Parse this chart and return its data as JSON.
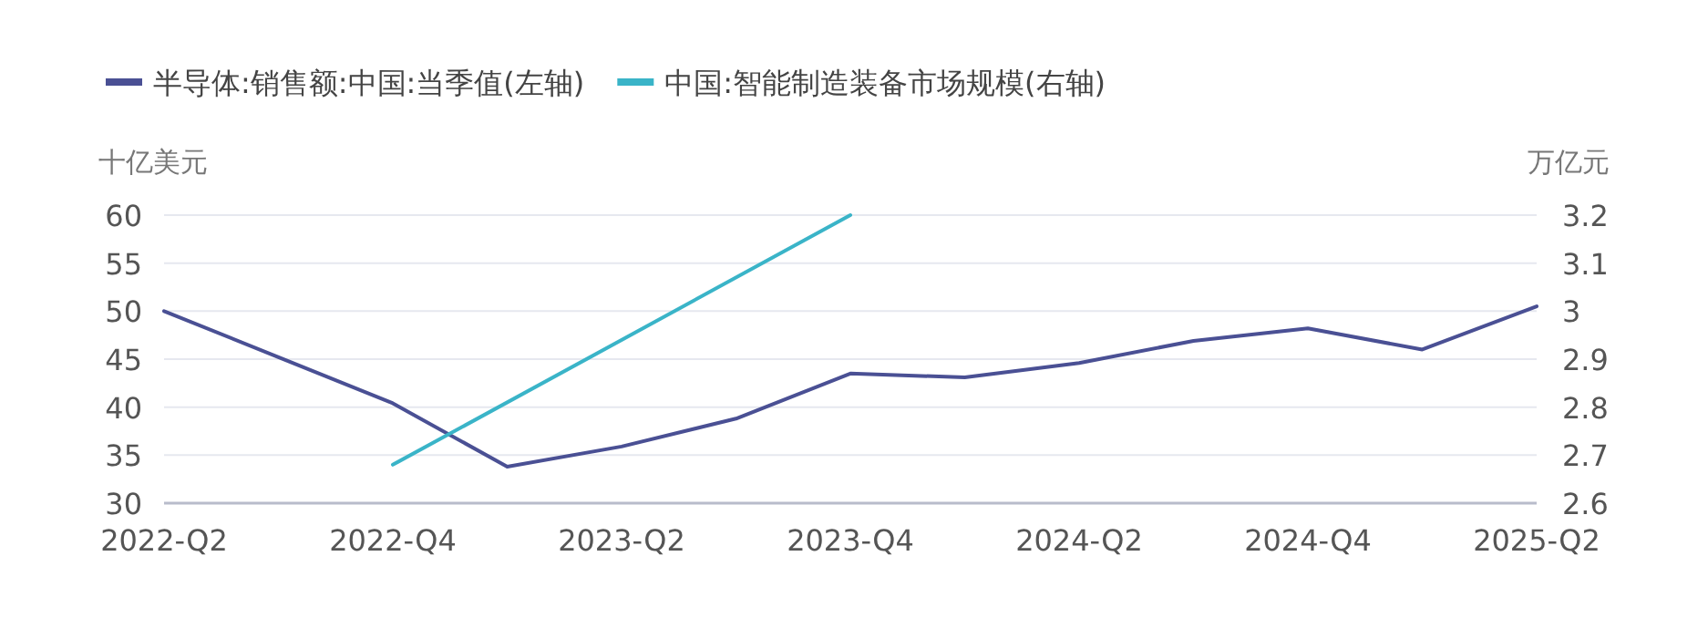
{
  "chart_data": {
    "type": "line",
    "categories": [
      "2022-Q2",
      null,
      "2022-Q4",
      null,
      "2023-Q2",
      null,
      "2023-Q4",
      null,
      "2024-Q2",
      null,
      "2024-Q4",
      null,
      "2025-Q2"
    ],
    "ylabel": "十亿美元",
    "y2label": "万亿元",
    "ylim": [
      30,
      60
    ],
    "yticks": [
      30,
      35,
      40,
      45,
      50,
      55,
      60
    ],
    "y2lim": [
      2.6,
      3.2
    ],
    "y2ticks": [
      2.6,
      2.7,
      2.8,
      2.9,
      {
        "value": 3,
        "label": "3"
      },
      3.1,
      3.2
    ],
    "grid": "y",
    "legend": "top left",
    "marker": "none",
    "line_style": "solid",
    "series": [
      {
        "name": "半导体:销售额:中国:当季值(左轴)",
        "color": "#4a5094",
        "values": [
          50,
          45.2,
          40.4,
          33.8,
          35.9,
          38.8,
          43.5,
          43.1,
          44.6,
          46.9,
          48.2,
          46.0,
          50.5
        ]
      },
      {
        "name": "中国:智能制造装备市场规模(右轴)",
        "color": "#3ab4c8",
        "axis": "y2",
        "values": [
          null,
          null,
          2.68,
          null,
          null,
          null,
          3.2,
          null,
          null,
          null,
          null,
          null,
          null
        ]
      }
    ]
  }
}
